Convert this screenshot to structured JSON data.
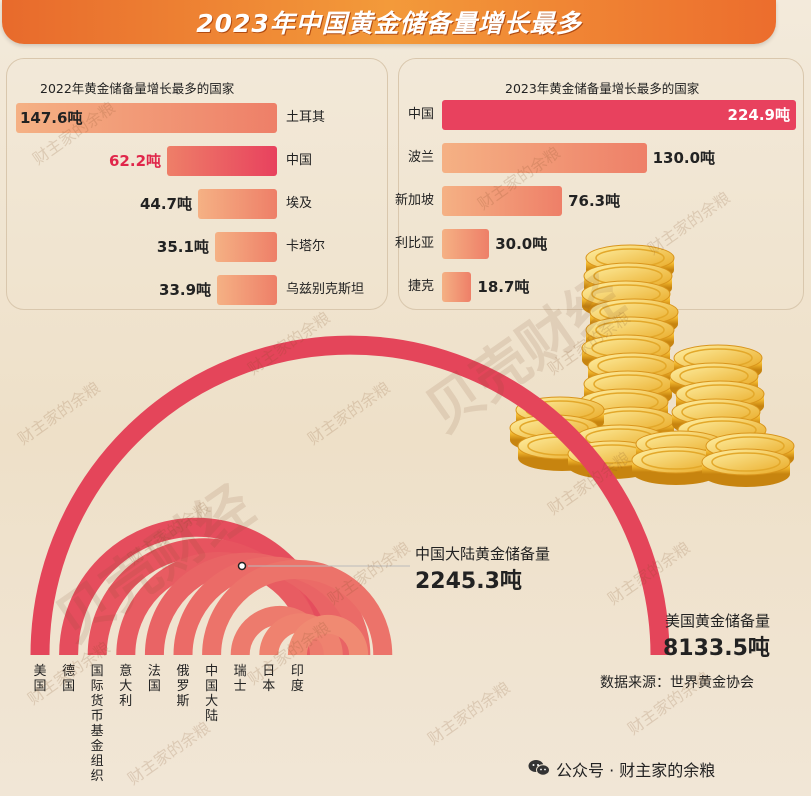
{
  "title": "2023年中国黄金储备量增长最多",
  "chart_data": [
    {
      "type": "bar",
      "title": "2022年黄金储备量增长最多的国家",
      "categories": [
        "土耳其",
        "中国",
        "埃及",
        "卡塔尔",
        "乌兹别克斯坦"
      ],
      "values": [
        147.6,
        62.2,
        44.7,
        35.1,
        33.9
      ],
      "value_labels": [
        "147.6吨",
        "62.2吨",
        "44.7吨",
        "35.1吨",
        "33.9吨"
      ],
      "orientation": "horizontal-right-aligned",
      "highlight": "中国"
    },
    {
      "type": "bar",
      "title": "2023年黄金储备量增长最多的国家",
      "categories": [
        "中国",
        "波兰",
        "新加坡",
        "利比亚",
        "捷克"
      ],
      "values": [
        224.9,
        130.0,
        76.3,
        30.0,
        18.7
      ],
      "value_labels": [
        "224.9吨",
        "130.0吨",
        "76.3吨",
        "30.0吨",
        "18.7吨"
      ],
      "orientation": "horizontal-left-aligned",
      "highlight": "中国"
    },
    {
      "type": "arc",
      "categories": [
        "美国",
        "德国",
        "国际货币基金组织",
        "意大利",
        "法国",
        "俄罗斯",
        "中国大陆",
        "瑞士",
        "日本",
        "印度"
      ],
      "values": [
        8133.5,
        3352.6,
        2814.0,
        2451.8,
        2436.9,
        2332.7,
        2245.3,
        1040.0,
        846.0,
        803.6
      ],
      "annotations": [
        {
          "category": "中国大陆",
          "label": "中国大陆黄金储备量",
          "value_label": "2245.3吨"
        },
        {
          "category": "美国",
          "label": "美国黄金储备量",
          "value_label": "8133.5吨"
        }
      ]
    }
  ],
  "source": "数据来源：世界黄金协会",
  "watermark": {
    "text": "财主家的余粮",
    "brand": "贝壳财经"
  },
  "footer": {
    "icon": "wechat-icon",
    "channel": "公众号 · 财主家的余粮"
  },
  "colors": {
    "banner": "#ee7a30",
    "bar_highlight": "#e8415e",
    "bar_light": "#f5b184",
    "bar_mid": "#ee7f68",
    "arc_outer": "#e4455a",
    "arc_inner": "#f08a72",
    "china_value": "#e0264a"
  }
}
